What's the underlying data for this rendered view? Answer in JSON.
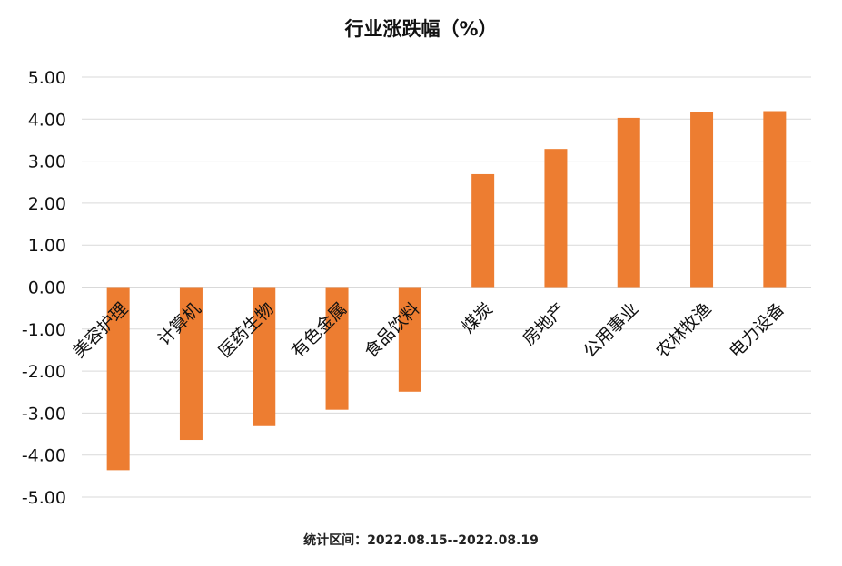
{
  "chart_data": {
    "type": "bar",
    "title": "行业涨跌幅（%）",
    "categories": [
      "美容护理",
      "计算机",
      "医药生物",
      "有色金属",
      "食品饮料",
      "煤炭",
      "房地产",
      "公用事业",
      "农林牧渔",
      "电力设备"
    ],
    "series": [
      {
        "values": [
          -4.36,
          -3.64,
          -3.31,
          -2.92,
          -2.49,
          2.69,
          3.29,
          4.03,
          4.16,
          4.19
        ]
      }
    ],
    "ylim": [
      -5,
      5
    ],
    "yticks": [
      "5.00",
      "4.00",
      "3.00",
      "2.00",
      "1.00",
      "0.00",
      "-1.00",
      "-2.00",
      "-3.00",
      "-4.00",
      "-5.00"
    ],
    "grid": true,
    "legend": "none",
    "bar_color": "#ED7D31",
    "grid_color": "#D9D9D9"
  },
  "footnote": "统计区间：2022.08.15--2022.08.19"
}
